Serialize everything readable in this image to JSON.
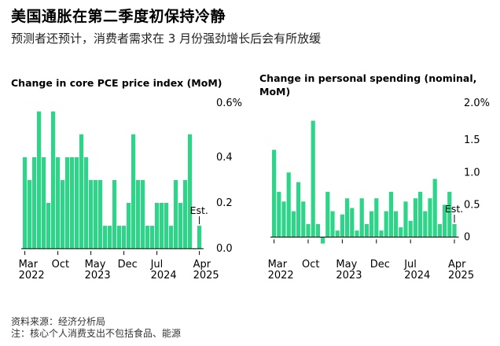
{
  "header": {
    "title": "美国通胀在第二季度初保持冷静",
    "subtitle": "预测者还预计，消费者需求在 3 月份强劲增长后会有所放缓"
  },
  "colors": {
    "bar": "#2ed589",
    "axis": "#000000",
    "text": "#000000"
  },
  "chart_data": [
    {
      "type": "bar",
      "title": "Change in core PCE price index (MoM)",
      "ylim": [
        -0.02,
        0.63
      ],
      "yticks": [
        0.0,
        0.2,
        0.4
      ],
      "ytick_labels": [
        "0.0",
        "0.2",
        "0.4"
      ],
      "ytop_label": "0.6%",
      "x_labels": [
        {
          "month": "Mar",
          "year": "2022"
        },
        {
          "month": "Oct",
          "year": ""
        },
        {
          "month": "May",
          "year": "2023"
        },
        {
          "month": "Dec",
          "year": ""
        },
        {
          "month": "Jul",
          "year": "2024"
        },
        {
          "month": "Apr",
          "year": "2025"
        }
      ],
      "x_label_index": [
        0,
        7,
        14,
        21,
        28,
        37
      ],
      "values": [
        0.4,
        0.3,
        0.4,
        0.6,
        0.4,
        0.2,
        0.6,
        0.4,
        0.3,
        0.4,
        0.4,
        0.4,
        0.5,
        0.4,
        0.3,
        0.3,
        0.3,
        0.1,
        0.1,
        0.3,
        0.1,
        0.1,
        0.2,
        0.5,
        0.3,
        0.3,
        0.1,
        0.1,
        0.2,
        0.2,
        0.2,
        0.1,
        0.3,
        0.2,
        0.3,
        0.5,
        0.0,
        0.1
      ],
      "estimate_index": 37,
      "annotation": "Est."
    },
    {
      "type": "bar",
      "title": "Change in personal spending (nominal, MoM)",
      "ylim": [
        -0.25,
        2.05
      ],
      "yticks": [
        0,
        0.5,
        1.0,
        1.5
      ],
      "ytick_labels": [
        "0",
        "0.5",
        "1.0",
        "1.5"
      ],
      "ytop_label": "2.0%",
      "x_labels": [
        {
          "month": "Mar",
          "year": "2022"
        },
        {
          "month": "Oct",
          "year": ""
        },
        {
          "month": "May",
          "year": "2023"
        },
        {
          "month": "Dec",
          "year": ""
        },
        {
          "month": "Jul",
          "year": "2024"
        },
        {
          "month": "Apr",
          "year": "2025"
        }
      ],
      "x_label_index": [
        0,
        7,
        14,
        21,
        28,
        37
      ],
      "values": [
        1.35,
        0.7,
        0.55,
        1.0,
        0.4,
        0.85,
        0.55,
        0.2,
        1.8,
        0.2,
        -0.1,
        0.7,
        0.4,
        0.1,
        0.35,
        0.6,
        0.45,
        0.1,
        0.6,
        0.2,
        0.4,
        0.6,
        0.1,
        0.4,
        0.7,
        0.4,
        0.15,
        0.55,
        0.25,
        0.6,
        0.7,
        0.4,
        0.6,
        0.9,
        0.2,
        0.5,
        0.7,
        0.2
      ],
      "estimate_index": 37,
      "annotation": "Est."
    }
  ],
  "footer": {
    "source": "资料来源：经济分析局",
    "note": "注：核心个人消费支出不包括食品、能源"
  }
}
